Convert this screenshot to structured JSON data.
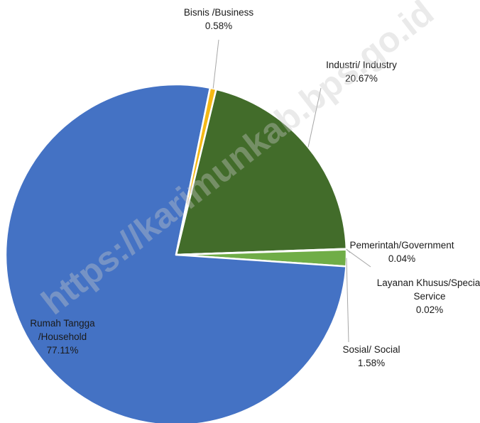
{
  "chart_data": {
    "type": "pie",
    "title": "",
    "slices": [
      {
        "label": "Industri/ Industry",
        "value": 20.67,
        "value_label": "20.67%",
        "color": "#426c2a"
      },
      {
        "label": "Pemerintah/Government",
        "value": 0.04,
        "value_label": "0.04%",
        "color": "#5b8e36"
      },
      {
        "label": "Layanan Khusus/Special Service",
        "value": 0.02,
        "value_label": "0.02%",
        "color": "#7aaa4c"
      },
      {
        "label": "Sosial/ Social",
        "value": 1.58,
        "value_label": "1.58%",
        "color": "#70ad47"
      },
      {
        "label": "Rumah Tangga /Household",
        "value": 77.11,
        "value_label": "77.11%",
        "color": "#4472c4"
      },
      {
        "label": "Bisnis /Business",
        "value": 0.58,
        "value_label": "0.58%",
        "color": "#f5b915"
      }
    ],
    "legend": "none",
    "data_labels": "outside-with-leader-lines"
  },
  "watermark": "https://karimunkab.bps.go.id"
}
